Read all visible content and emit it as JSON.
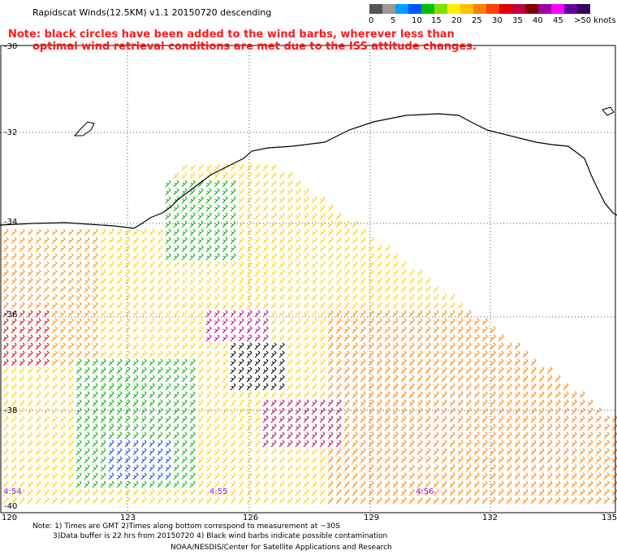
{
  "title": "Rapidscat Winds(12.5KM) v1.1 20150720 descending",
  "note": {
    "line1": "Note: black circles have been added to the wind barbs, wherever less than",
    "line2": "optimal wind retrieval conditions are met due to the ISS attitude changes."
  },
  "legend": {
    "labels": [
      "0",
      "5",
      "10",
      "15",
      "20",
      "25",
      "30",
      "35",
      "40",
      "45",
      ">50 knots"
    ],
    "colors": [
      "#555555",
      "#9a9a9a",
      "#00a0ff",
      "#0055ff",
      "#00c000",
      "#80e000",
      "#ffee00",
      "#ffc000",
      "#ff8000",
      "#ff4000",
      "#e00000",
      "#c00040",
      "#800000",
      "#a000a0",
      "#ff00ff",
      "#6000a0",
      "#300060"
    ]
  },
  "axes": {
    "lat_labels": [
      "-30",
      "-32",
      "-34",
      "-36",
      "-38",
      "-40"
    ],
    "lon_labels": [
      "120",
      "123",
      "126",
      "129",
      "132",
      "135"
    ]
  },
  "time_labels": [
    "4:54",
    "4:55",
    "4:56"
  ],
  "footer": {
    "line1": "Note: 1) Times are GMT 2)Times along bottom correspond to measurement at ~30S",
    "line2": "3)Data buffer is 22 hrs from 20150720 4) Black wind barbs indicate possible contamination",
    "line3": "NOAA/NESDIS/Center for Satellite Applications and Research"
  }
}
